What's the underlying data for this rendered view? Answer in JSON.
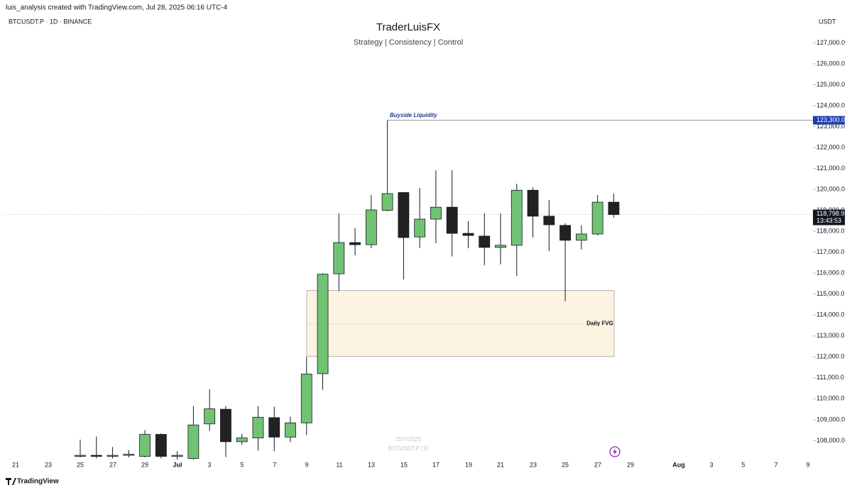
{
  "chart_data": {
    "type": "candlestick",
    "header": "luis_analysis created with TradingView.com, Jul 28, 2025 06:16 UTC-4",
    "symbol": "BTCUSDT.P · 1D · BINANCE",
    "title": "TraderLuisFX",
    "subtitle": "Strategy | Consistency | Control",
    "currency": "USDT",
    "watermark_date": "29/7/2025",
    "watermark_symbol": "BTCUSDT.P | D",
    "brand": "TradingView",
    "up_color": "#72c274",
    "down_color": "#222222",
    "open": [
      107250,
      107300,
      107250,
      107300,
      107250,
      108300,
      107250,
      107150,
      108800,
      109500,
      107950,
      108130,
      109100,
      108170,
      108850,
      111200,
      115970,
      117460,
      117360,
      119000,
      119850,
      117730,
      118580,
      119150,
      117900,
      117770,
      117230,
      117330,
      119960,
      118720,
      118280,
      117570,
      117870,
      119390
    ],
    "high": [
      108050,
      108200,
      107700,
      107550,
      108500,
      108350,
      107500,
      109650,
      110450,
      109650,
      108330,
      109650,
      109620,
      109150,
      112000,
      116000,
      118850,
      118150,
      119730,
      123300,
      119870,
      120070,
      120910,
      120910,
      118480,
      118850,
      118850,
      120270,
      120100,
      119490,
      118380,
      118280,
      119730,
      119800
    ],
    "low": [
      107200,
      107150,
      107150,
      107200,
      107200,
      107150,
      107100,
      107100,
      108470,
      107220,
      107800,
      107530,
      107500,
      107930,
      108270,
      110430,
      115150,
      116850,
      117190,
      118950,
      115700,
      117200,
      117430,
      116800,
      117190,
      116380,
      116420,
      115870,
      117700,
      117060,
      114660,
      117130,
      117800,
      118650
    ],
    "close": [
      107300,
      107250,
      107300,
      107350,
      108300,
      107250,
      107300,
      108750,
      109520,
      107950,
      108130,
      109120,
      108170,
      108850,
      111180,
      115950,
      117460,
      117360,
      119020,
      119800,
      117700,
      118580,
      119150,
      117900,
      117800,
      117230,
      117330,
      119960,
      118720,
      118310,
      117570,
      117870,
      119390,
      118798.9
    ],
    "xticks": [
      "21",
      "23",
      "25",
      "27",
      "29",
      "Jul",
      "3",
      "5",
      "7",
      "9",
      "11",
      "13",
      "15",
      "17",
      "19",
      "21",
      "23",
      "25",
      "27",
      "29",
      "Aug",
      "3",
      "5",
      "7",
      "9"
    ],
    "ylim": [
      107100,
      128300
    ],
    "yticks": [
      {
        "value": 108000,
        "label": "108,000.0"
      },
      {
        "value": 109000,
        "label": "109,000.0"
      },
      {
        "value": 110000,
        "label": "110,000.0"
      },
      {
        "value": 111000,
        "label": "111,000.0"
      },
      {
        "value": 112000,
        "label": "112,000.0"
      },
      {
        "value": 113000,
        "label": "113,000.0"
      },
      {
        "value": 114000,
        "label": "114,000.0"
      },
      {
        "value": 115000,
        "label": "115,000.0"
      },
      {
        "value": 116000,
        "label": "116,000.0"
      },
      {
        "value": 117000,
        "label": "117,000.0"
      },
      {
        "value": 118000,
        "label": "118,000.0"
      },
      {
        "value": 119000,
        "label": "119,000.0"
      },
      {
        "value": 120000,
        "label": "120,000.0"
      },
      {
        "value": 121000,
        "label": "121,000.0"
      },
      {
        "value": 122000,
        "label": "122,000.0"
      },
      {
        "value": 123000,
        "label": "123,000.0"
      },
      {
        "value": 124000,
        "label": "124,000.0"
      },
      {
        "value": 125000,
        "label": "125,000.0"
      },
      {
        "value": 126000,
        "label": "126,000.0"
      },
      {
        "value": 127000,
        "label": "127,000.0"
      }
    ],
    "liquidity": {
      "text": "Buyside Liquidity",
      "value": 123300,
      "label": "123,300.0"
    },
    "fvg": {
      "text": "Daily FVG",
      "top": 115170,
      "bottom": 112020
    },
    "last_price": {
      "value": 118798.9,
      "label": "118,798.9"
    },
    "countdown": "13:43:53"
  }
}
